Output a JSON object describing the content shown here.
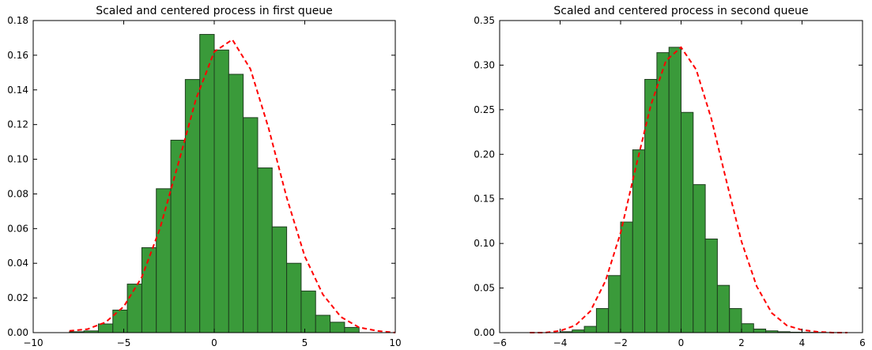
{
  "chart_data": [
    {
      "type": "bar",
      "title": "Scaled and centered process in first queue",
      "xlabel": "",
      "ylabel": "",
      "xlim": [
        -10,
        10
      ],
      "ylim": [
        0,
        0.18
      ],
      "xticks": [
        -10,
        -5,
        0,
        5,
        10
      ],
      "yticks": [
        0.0,
        0.02,
        0.04,
        0.06,
        0.08,
        0.1,
        0.12,
        0.14,
        0.16,
        0.18
      ],
      "ytick_labels": [
        "0.00",
        "0.02",
        "0.04",
        "0.06",
        "0.08",
        "0.10",
        "0.12",
        "0.14",
        "0.16",
        "0.18"
      ],
      "bin_edges": [
        -8.0,
        -7.2,
        -6.4,
        -5.6,
        -4.8,
        -4.0,
        -3.2,
        -2.4,
        -1.6,
        -0.8,
        0.0,
        0.8,
        1.6,
        2.4,
        3.2,
        4.0,
        4.8,
        5.6,
        6.4,
        7.2,
        8.0
      ],
      "values": [
        0.0005,
        0.001,
        0.005,
        0.013,
        0.028,
        0.049,
        0.083,
        0.111,
        0.146,
        0.172,
        0.163,
        0.149,
        0.124,
        0.095,
        0.061,
        0.04,
        0.024,
        0.01,
        0.006,
        0.003
      ],
      "series": [
        {
          "type": "line",
          "style": "dashed",
          "x": [
            -8,
            -7,
            -6,
            -5,
            -4,
            -3,
            -2,
            -1,
            0,
            1,
            2,
            3,
            4,
            5,
            6,
            7,
            8,
            9,
            10
          ],
          "y": [
            0.001,
            0.002,
            0.006,
            0.015,
            0.032,
            0.06,
            0.097,
            0.135,
            0.162,
            0.169,
            0.152,
            0.118,
            0.078,
            0.044,
            0.022,
            0.009,
            0.003,
            0.001,
            0.0
          ]
        }
      ],
      "colors": {
        "bar_fill": "#3a9a3a",
        "bar_edge": "#1e3d1e",
        "line": "#ff0000"
      }
    },
    {
      "type": "bar",
      "title": "Scaled and centered process in second queue",
      "xlabel": "",
      "ylabel": "",
      "xlim": [
        -6,
        6
      ],
      "ylim": [
        0,
        0.35
      ],
      "xticks": [
        -6,
        -4,
        -2,
        0,
        2,
        4,
        6
      ],
      "yticks": [
        0.0,
        0.05,
        0.1,
        0.15,
        0.2,
        0.25,
        0.3,
        0.35
      ],
      "ytick_labels": [
        "0.00",
        "0.05",
        "0.10",
        "0.15",
        "0.20",
        "0.25",
        "0.30",
        "0.35"
      ],
      "bin_edges": [
        -4.0,
        -3.6,
        -3.2,
        -2.8,
        -2.4,
        -2.0,
        -1.6,
        -1.2,
        -0.8,
        -0.4,
        0.0,
        0.4,
        0.8,
        1.2,
        1.6,
        2.0,
        2.4,
        2.8,
        3.2,
        3.6,
        4.0,
        4.4,
        4.8,
        5.2
      ],
      "values": [
        0.001,
        0.003,
        0.007,
        0.027,
        0.064,
        0.124,
        0.205,
        0.284,
        0.314,
        0.32,
        0.247,
        0.166,
        0.105,
        0.053,
        0.027,
        0.01,
        0.004,
        0.002,
        0.001,
        0.0005,
        0.0003,
        0.0002,
        0.0001
      ],
      "series": [
        {
          "type": "line",
          "style": "dashed",
          "x": [
            -5,
            -4.5,
            -4,
            -3.5,
            -3,
            -2.5,
            -2,
            -1.5,
            -1,
            -0.5,
            0,
            0.5,
            1,
            1.5,
            2,
            2.5,
            3,
            3.5,
            4,
            4.5,
            5,
            5.5
          ],
          "y": [
            0.0,
            0.0,
            0.002,
            0.008,
            0.024,
            0.058,
            0.112,
            0.185,
            0.255,
            0.305,
            0.32,
            0.295,
            0.24,
            0.17,
            0.102,
            0.052,
            0.022,
            0.008,
            0.003,
            0.001,
            0.0,
            0.0
          ]
        }
      ],
      "colors": {
        "bar_fill": "#3a9a3a",
        "bar_edge": "#1e3d1e",
        "line": "#ff0000"
      }
    }
  ]
}
